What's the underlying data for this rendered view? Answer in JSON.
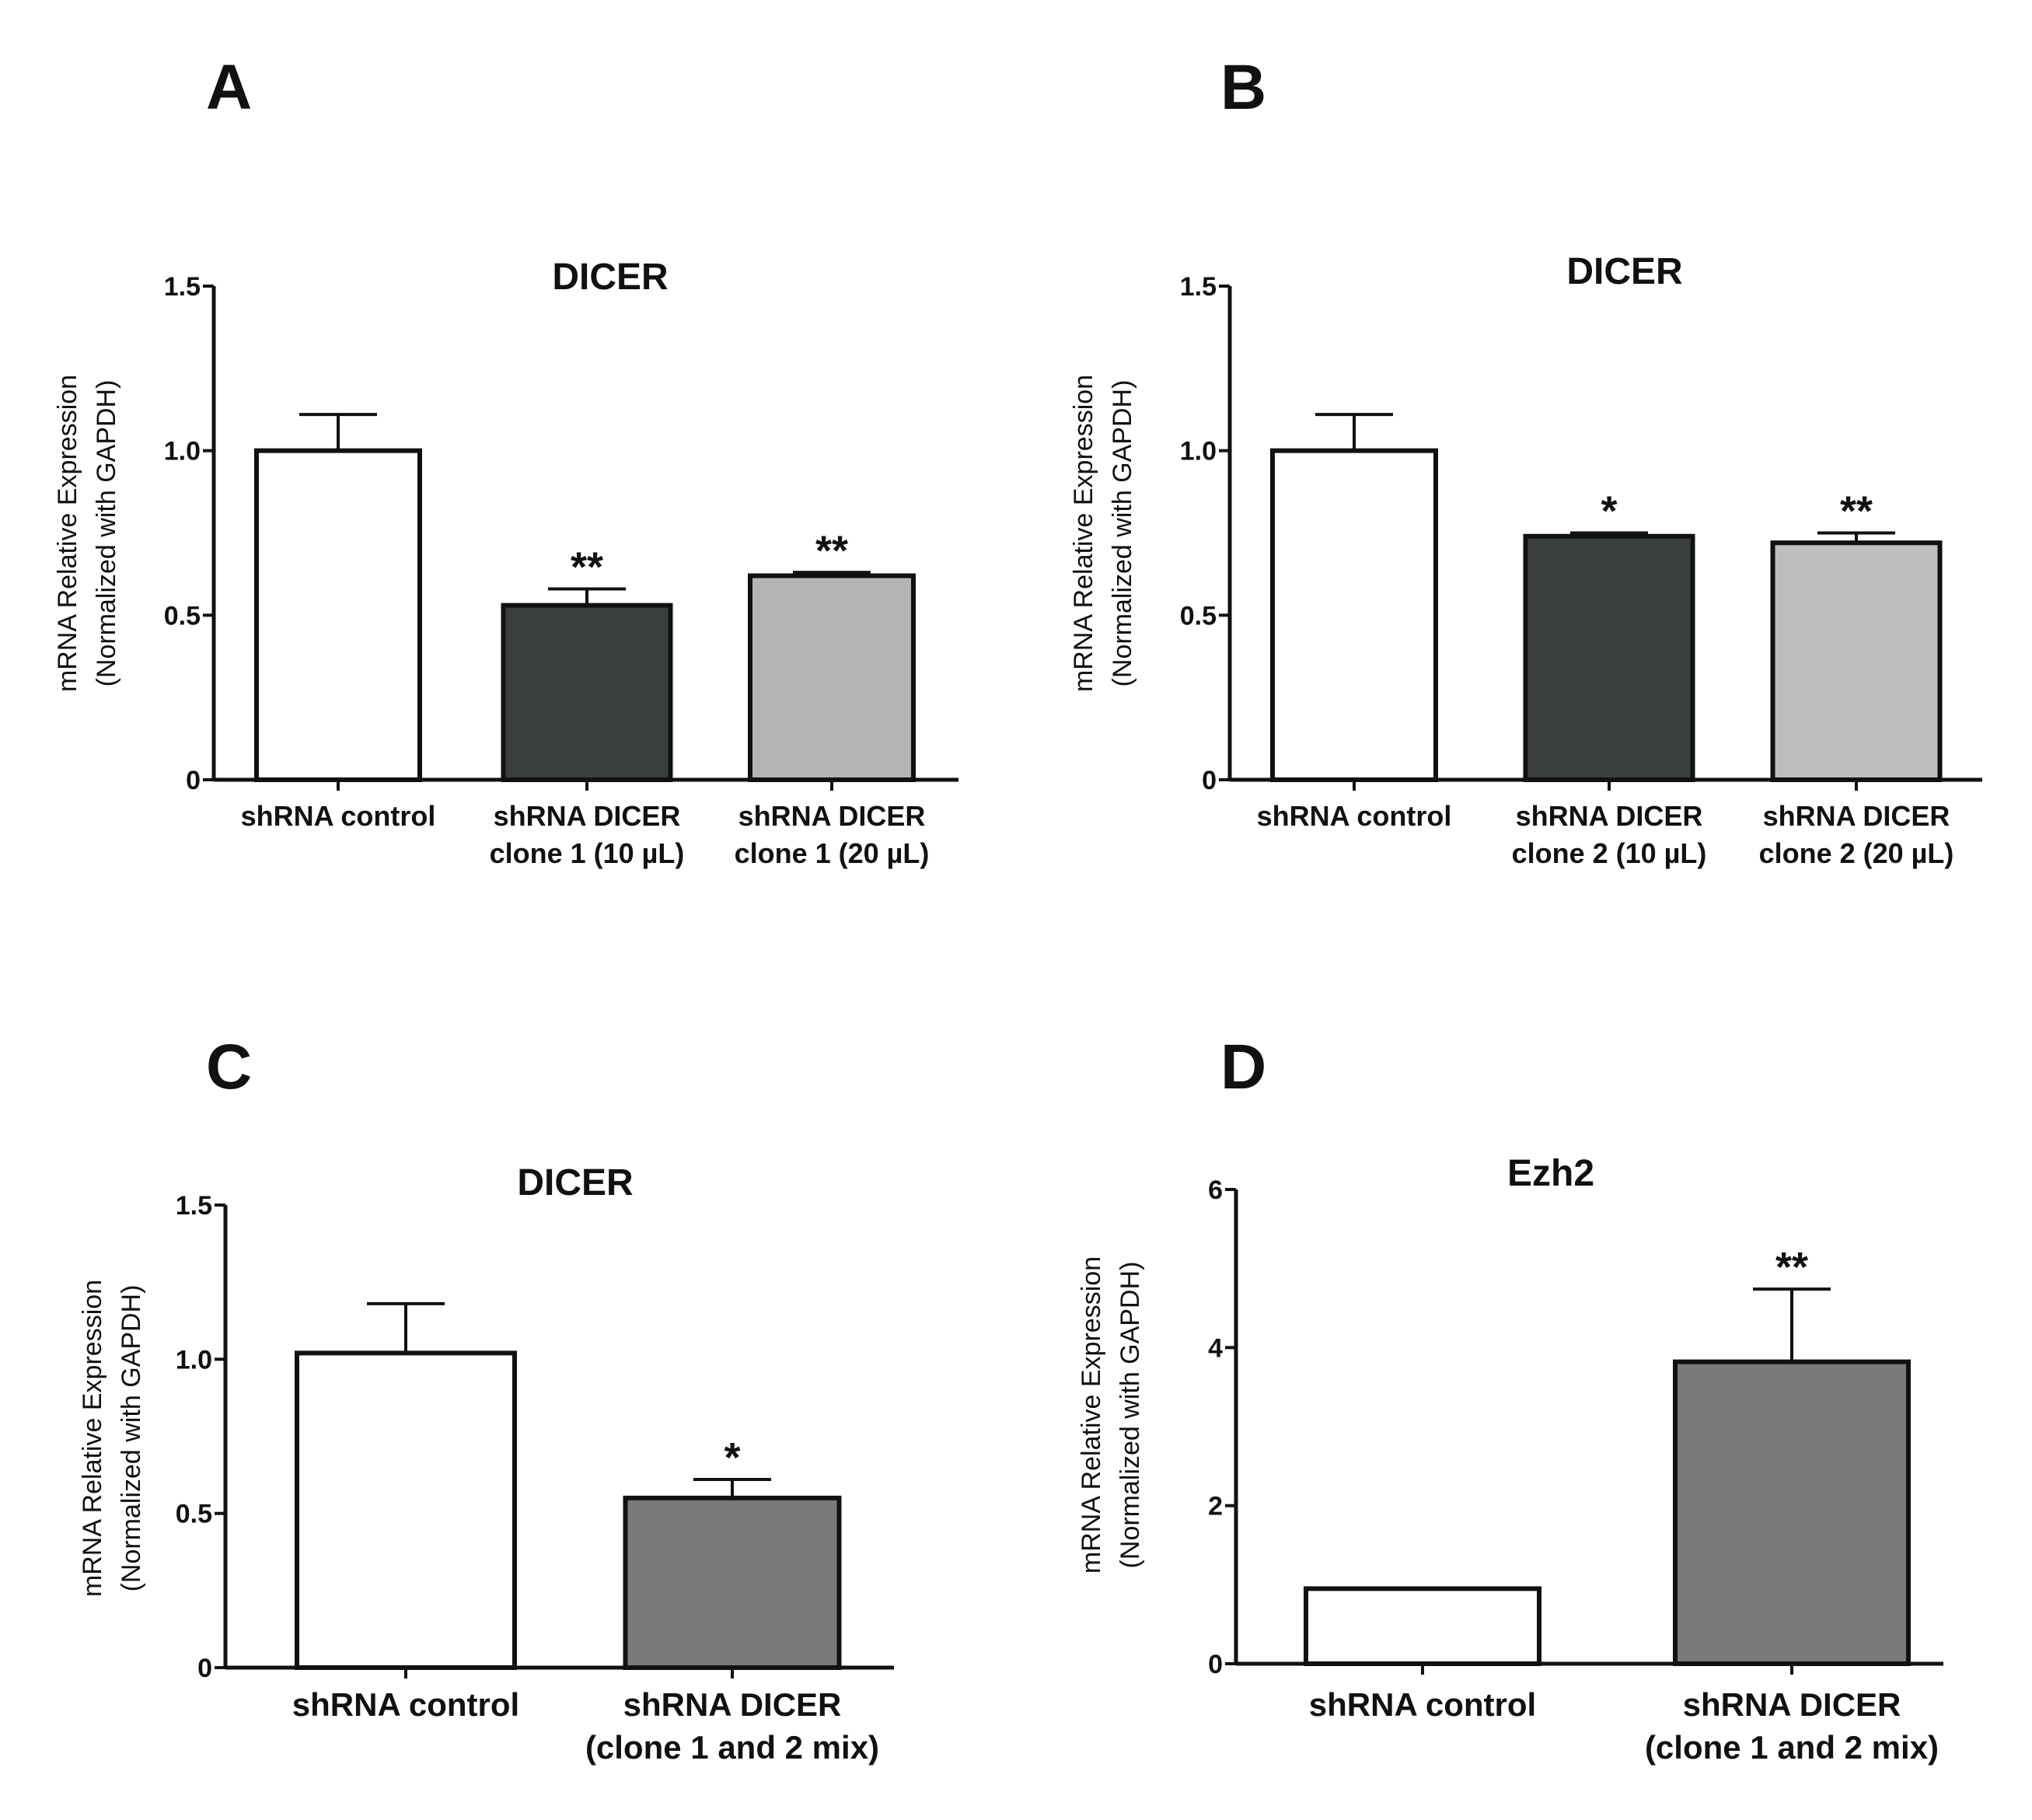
{
  "chart_data": [
    {
      "panel": "A",
      "type": "bar",
      "title": "DICER",
      "ylabel": [
        "mRNA Relative Expression",
        "(Normalized with GAPDH)"
      ],
      "xlabel": "",
      "ylim": [
        0,
        1.5
      ],
      "yticks": [
        0,
        0.5,
        1.0,
        1.5
      ],
      "ytick_labels": [
        "0",
        "0.5",
        "1.0",
        "1.5"
      ],
      "categories": [
        [
          "shRNA control"
        ],
        [
          "shRNA DICER",
          "clone 1 (10 µL)"
        ],
        [
          "shRNA DICER",
          "clone 1 (20 µL)"
        ]
      ],
      "values": [
        1.0,
        0.53,
        0.62
      ],
      "errors": [
        0.11,
        0.05,
        0.01
      ],
      "significance": [
        "",
        "**",
        "**"
      ],
      "colors": [
        "#ffffff",
        "#3b3e3f",
        "#b4b4b4"
      ]
    },
    {
      "panel": "B",
      "type": "bar",
      "title": "DICER",
      "ylabel": [
        "mRNA Relative Expression",
        "(Normalized  with  GAPDH)"
      ],
      "xlabel": "",
      "ylim": [
        0,
        1.5
      ],
      "yticks": [
        0,
        0.5,
        1.0,
        1.5
      ],
      "ytick_labels": [
        "0",
        "0.5",
        "1.0",
        "1.5"
      ],
      "categories": [
        [
          "shRNA control"
        ],
        [
          "shRNA DICER",
          "clone 2 (10 µL)"
        ],
        [
          "shRNA DICER",
          "clone 2 (20 µL)"
        ]
      ],
      "values": [
        1.0,
        0.74,
        0.72
      ],
      "errors": [
        0.11,
        0.01,
        0.03
      ],
      "significance": [
        "",
        "*",
        "**"
      ],
      "colors": [
        "#ffffff",
        "#3b3e3f",
        "#bcbfbd"
      ]
    },
    {
      "panel": "C",
      "type": "bar",
      "title": "DICER",
      "ylabel": [
        "mRNA Relative Expression",
        "(Normalized with GAPDH)"
      ],
      "xlabel": "",
      "ylim": [
        0,
        1.5
      ],
      "yticks": [
        0,
        0.5,
        1.0,
        1.5
      ],
      "ytick_labels": [
        "0",
        "0.5",
        "1.0",
        "1.5"
      ],
      "categories": [
        [
          "shRNA control"
        ],
        [
          "shRNA DICER",
          "(clone 1 and 2 mix)"
        ]
      ],
      "values": [
        1.02,
        0.55
      ],
      "errors": [
        0.16,
        0.06
      ],
      "significance": [
        "",
        "*"
      ],
      "colors": [
        "#ffffff",
        "#7a7a7a"
      ]
    },
    {
      "panel": "D",
      "type": "bar",
      "title": "Ezh2",
      "ylabel": [
        "mRNA Relative Expression",
        "(Normalized  with  GAPDH)"
      ],
      "xlabel": "",
      "ylim": [
        0,
        6
      ],
      "yticks": [
        0,
        2,
        4,
        6
      ],
      "ytick_labels": [
        "0",
        "2",
        "4",
        "6"
      ],
      "categories": [
        [
          "shRNA control"
        ],
        [
          "shRNA DICER",
          "(clone 1 and 2 mix)"
        ]
      ],
      "values": [
        0.95,
        3.82
      ],
      "errors": [
        0.0,
        0.92
      ],
      "significance": [
        "",
        "**"
      ],
      "colors": [
        "#ffffff",
        "#7a7a7a"
      ]
    }
  ]
}
